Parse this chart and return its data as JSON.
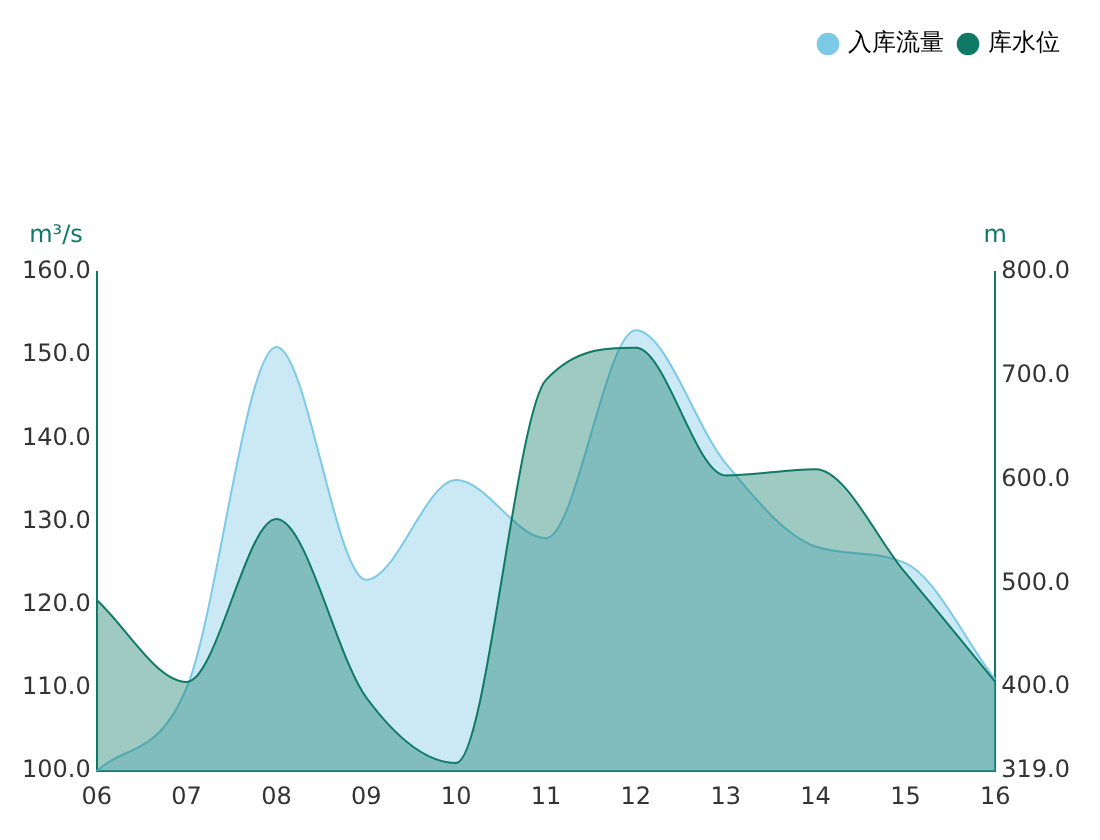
{
  "chart_data": {
    "type": "area",
    "categories": [
      "06",
      "07",
      "08",
      "09",
      "10",
      "11",
      "12",
      "13",
      "14",
      "15",
      "16"
    ],
    "ylabel": "m³/s",
    "y2label": "m",
    "series": [
      {
        "name": "入库流量",
        "color": "#7cc9e6",
        "values": [
          100,
          110,
          151,
          123,
          135,
          128,
          153,
          137,
          127,
          125,
          111
        ]
      },
      {
        "name": "库水位",
        "color": "#0e7a66",
        "axis": "y2",
        "values": [
          484,
          405,
          562,
          390,
          327,
          696,
          727,
          604,
          610,
          510,
          405
        ]
      }
    ],
    "ylim": [
      100,
      160
    ],
    "yticks": [
      {
        "value": 100,
        "label": "100.0"
      },
      {
        "value": 110,
        "label": "110.0"
      },
      {
        "value": 120,
        "label": "120.0"
      },
      {
        "value": 130,
        "label": "130.0"
      },
      {
        "value": 140,
        "label": "140.0"
      },
      {
        "value": 150,
        "label": "150.0"
      },
      {
        "value": 160,
        "label": "160.0"
      }
    ],
    "y2lim": [
      319,
      800
    ],
    "y2ticks": [
      {
        "value": 319,
        "label": "319.0"
      },
      {
        "value": 400,
        "label": "400.0"
      },
      {
        "value": 500,
        "label": "500.0"
      },
      {
        "value": 600,
        "label": "600.0"
      },
      {
        "value": 700,
        "label": "700.0"
      },
      {
        "value": 800,
        "label": "800.0"
      }
    ],
    "legend": "top right",
    "grid": false
  }
}
